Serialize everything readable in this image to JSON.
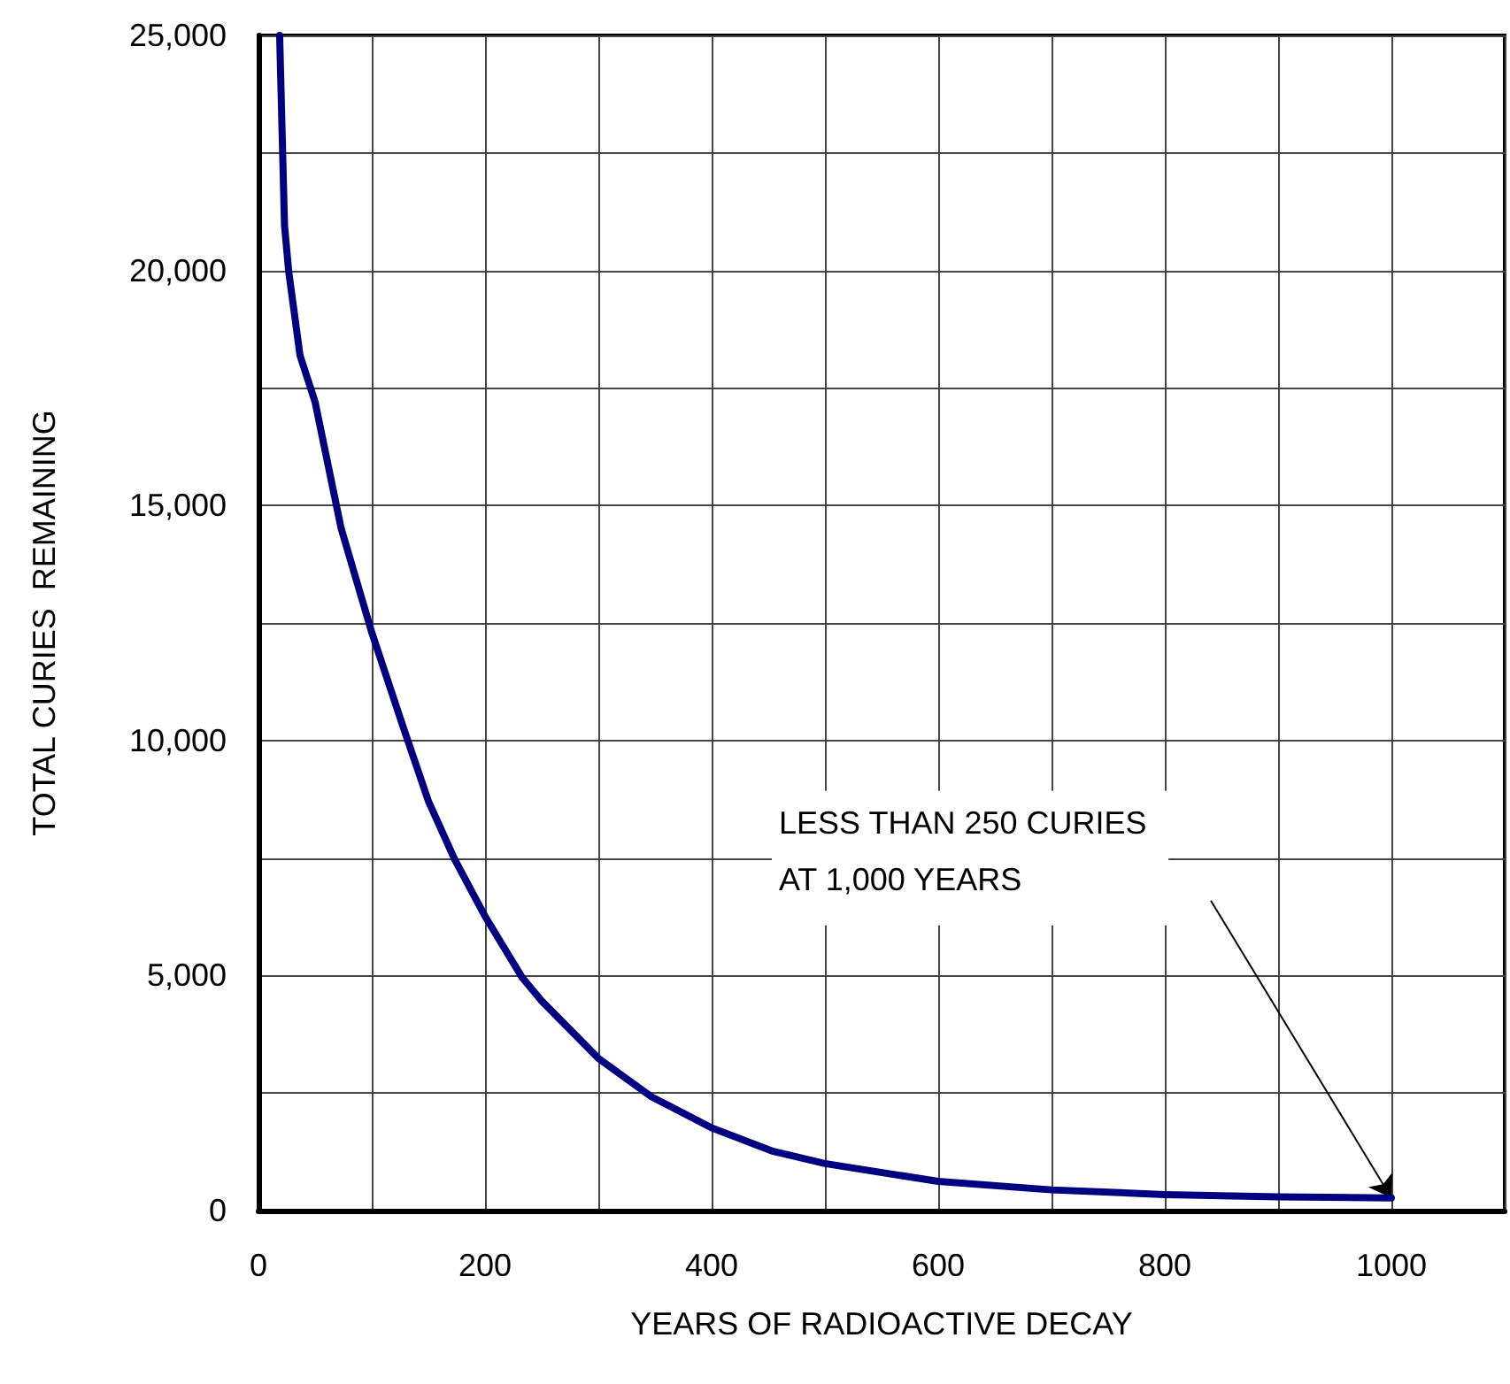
{
  "chart_data": {
    "type": "line",
    "xlabel": "YEARS OF RADIOACTIVE DECAY",
    "ylabel": "TOTAL CURIES  REMAINING",
    "x": [
      18.7,
      23,
      26.7,
      36.7,
      50,
      73,
      100,
      127,
      150,
      173,
      200,
      233,
      250,
      300,
      347,
      400,
      453,
      500,
      600,
      700,
      800,
      900,
      1000
    ],
    "series": [
      {
        "color": "#000080",
        "values": [
          25000,
          20960,
          19980,
          18190,
          17200,
          14510,
          12300,
          10340,
          8710,
          7480,
          6260,
          4950,
          4460,
          3240,
          2420,
          1760,
          1270,
          1000,
          620,
          440,
          340,
          290,
          270
        ]
      }
    ],
    "xlim": [
      0,
      1100
    ],
    "xticks": [
      0,
      {
        "value": 100,
        "label": null
      },
      200,
      {
        "value": 300,
        "label": null
      },
      400,
      {
        "value": 500,
        "label": null
      },
      600,
      {
        "value": 700,
        "label": null
      },
      800,
      {
        "value": 900,
        "label": null
      },
      1000,
      {
        "value": 1100,
        "label": null
      }
    ],
    "ylim": [
      0,
      25000
    ],
    "yticks": [
      0,
      {
        "value": 2500,
        "label": null
      },
      {
        "value": 5000,
        "label": "5,000"
      },
      {
        "value": 7500,
        "label": null
      },
      {
        "value": 10000,
        "label": "10,000"
      },
      {
        "value": 12500,
        "label": null
      },
      {
        "value": 15000,
        "label": "15,000"
      },
      {
        "value": 17500,
        "label": null
      },
      {
        "value": 20000,
        "label": "20,000"
      },
      {
        "value": 22500,
        "label": null
      },
      {
        "value": 25000,
        "label": "25,000"
      }
    ],
    "grid": true,
    "marker": "none",
    "line_style": "solid",
    "annotations": [
      "LESS THAN 250 CURIES\nAT 1,000 YEARS"
    ]
  }
}
